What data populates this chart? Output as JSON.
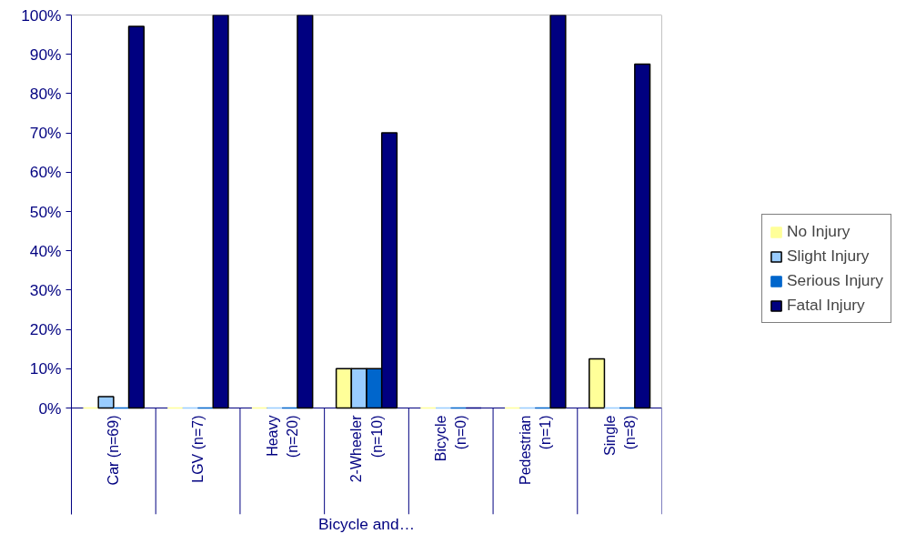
{
  "chart_data": {
    "type": "bar",
    "xlabel": "Bicycle and…",
    "categories": [
      "Car (n=69)",
      "LGV (n=7)",
      "Heavy\n(n=20)",
      "2-Wheeler\n(n=10)",
      "Bicycle\n(n=0)",
      "Pedestrian\n(n=1)",
      "Single\n(n=8)"
    ],
    "series": [
      {
        "name": "No Injury",
        "color": "#ffff99",
        "values": [
          0,
          0,
          0,
          10,
          0,
          0,
          12.5
        ]
      },
      {
        "name": "Slight Injury",
        "color": "#99ccff",
        "values": [
          2.9,
          0,
          0,
          10,
          0,
          0,
          0
        ]
      },
      {
        "name": "Serious Injury",
        "color": "#0066cc",
        "values": [
          0,
          0,
          0,
          10,
          0,
          0,
          0
        ]
      },
      {
        "name": "Fatal Injury",
        "color": "#000080",
        "values": [
          97.1,
          100,
          100,
          70,
          0,
          100,
          87.5
        ]
      }
    ],
    "ylim": [
      0,
      100
    ],
    "yticks": [
      {
        "value": 0,
        "label": "0%"
      },
      {
        "value": 10,
        "label": "10%"
      },
      {
        "value": 20,
        "label": "20%"
      },
      {
        "value": 30,
        "label": "30%"
      },
      {
        "value": 40,
        "label": "40%"
      },
      {
        "value": 50,
        "label": "50%"
      },
      {
        "value": 60,
        "label": "60%"
      },
      {
        "value": 70,
        "label": "70%"
      },
      {
        "value": 80,
        "label": "80%"
      },
      {
        "value": 90,
        "label": "90%"
      },
      {
        "value": 100,
        "label": "100%"
      }
    ],
    "grid": false,
    "legend": "right"
  }
}
